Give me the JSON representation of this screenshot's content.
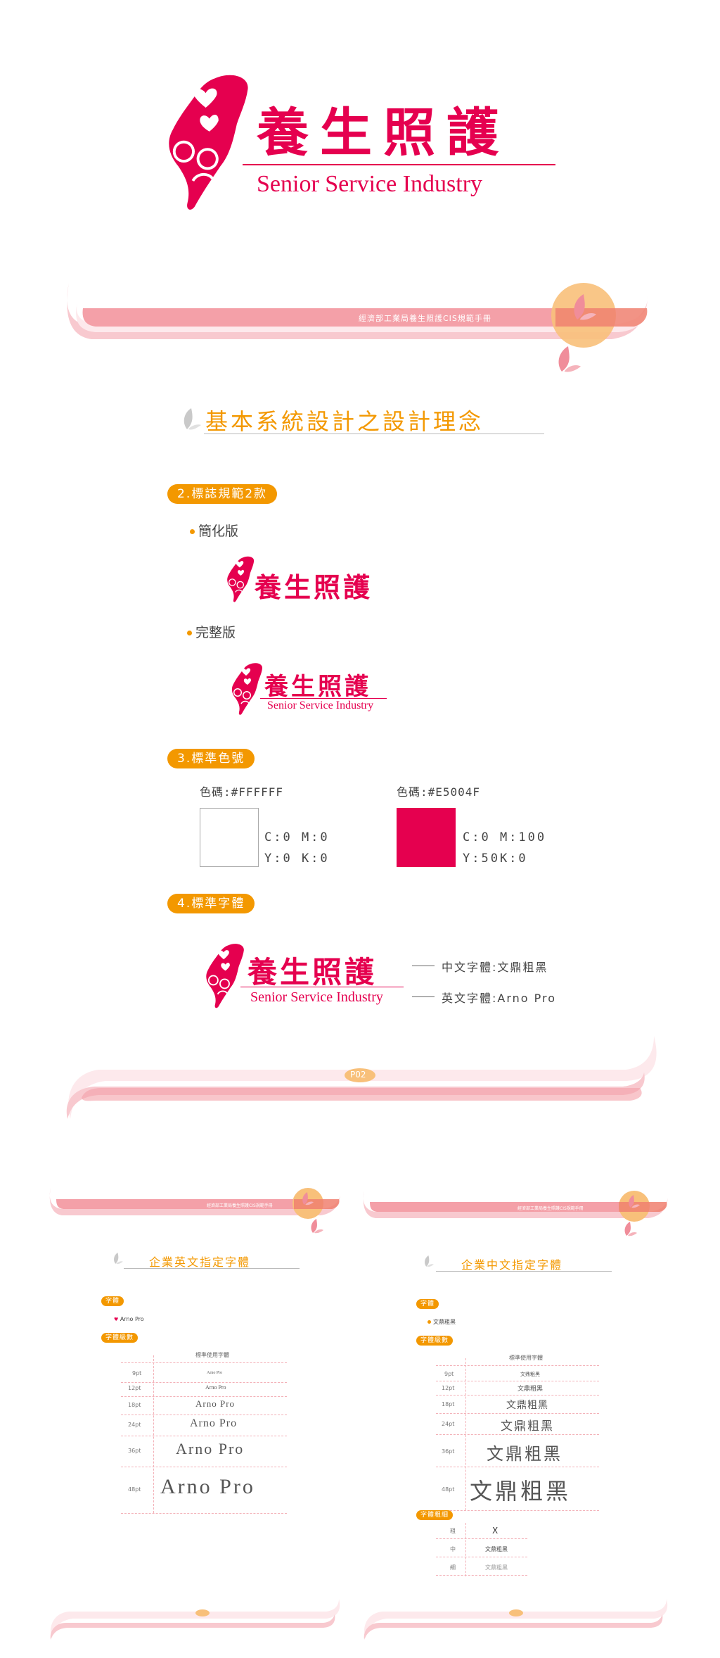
{
  "brand": {
    "name_zh": "養生照護",
    "name_en": "Senior Service Industry"
  },
  "colors": {
    "magenta": "#E5004F",
    "orange": "#F39800",
    "pink": "#F4A0A8"
  },
  "page1": {
    "manual_title": "經濟部工業局養生照護CIS規範手冊",
    "section_title": "基本系統設計之設計理念",
    "logo_section": {
      "label": "2.標誌規範2款",
      "simplified_label": "簡化版",
      "full_label": "完整版"
    },
    "color_section": {
      "label": "3.標準色號",
      "swatches": [
        {
          "code_label": "色碼:#FFFFFF",
          "hex": "#FFFFFF",
          "cm": "C:0 M:0",
          "yk": "Y:0 K:0"
        },
        {
          "code_label": "色碼:#E5004F",
          "hex": "#E5004F",
          "cm": "C:0 M:100",
          "yk": "Y:50K:0"
        }
      ]
    },
    "font_section": {
      "label": "4.標準字體",
      "zh_font": "中文字體:文鼎粗黑",
      "en_font": "英文字體:Arno Pro"
    },
    "page_number": "P02"
  },
  "page_en": {
    "manual_title": "經濟部工業局養生照護CIS規範手冊",
    "title": "企業英文指定字體",
    "font_label": "字體",
    "font_name": "Arno Pro",
    "size_label": "字體級數",
    "header": "標準使用字體",
    "rows": [
      {
        "size": "9pt",
        "sample": "Arno Pro"
      },
      {
        "size": "12pt",
        "sample": "Arno Pro"
      },
      {
        "size": "18pt",
        "sample": "Arno Pro"
      },
      {
        "size": "24pt",
        "sample": "Arno Pro"
      },
      {
        "size": "36pt",
        "sample": "Arno Pro"
      },
      {
        "size": "48pt",
        "sample": "Arno Pro"
      }
    ]
  },
  "page_zh": {
    "manual_title": "經濟部工業局養生照護CIS規範手冊",
    "title": "企業中文指定字體",
    "font_label": "字體",
    "font_name": "文鼎粗黑",
    "size_label": "字體級數",
    "header": "標準使用字體",
    "rows": [
      {
        "size": "9pt",
        "sample": "文鼎粗黑"
      },
      {
        "size": "12pt",
        "sample": "文鼎粗黑"
      },
      {
        "size": "18pt",
        "sample": "文鼎粗黑"
      },
      {
        "size": "24pt",
        "sample": "文鼎粗黑"
      },
      {
        "size": "36pt",
        "sample": "文鼎粗黑"
      },
      {
        "size": "48pt",
        "sample": "文鼎粗黑"
      }
    ],
    "weight_label": "字體粗細",
    "weights": [
      {
        "name": "粗",
        "sample": "X"
      },
      {
        "name": "中",
        "sample": "文鼎粗黑"
      },
      {
        "name": "細",
        "sample": "文鼎粗黑"
      }
    ]
  }
}
